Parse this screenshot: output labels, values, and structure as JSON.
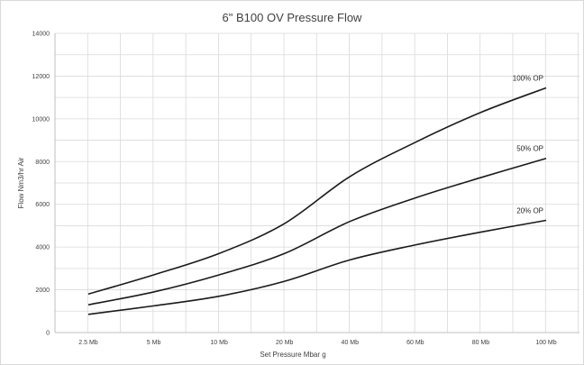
{
  "chart_data": {
    "type": "line",
    "title": "6\" B100 OV Pressure Flow",
    "xlabel": "Set Pressure Mbar g",
    "ylabel": "Flow Nm3/hr Air",
    "categories": [
      "2.5 Mb",
      "5 Mb",
      "10 Mb",
      "20 Mb",
      "40 Mb",
      "60 Mb",
      "80 Mb",
      "100 Mb"
    ],
    "ylim": [
      0,
      14000
    ],
    "yticks": [
      0,
      2000,
      4000,
      6000,
      8000,
      10000,
      12000,
      14000
    ],
    "grid": "major and minor gridlines",
    "legend": "none (series labeled at line ends)",
    "series": [
      {
        "name": "100% OP",
        "values": [
          1800,
          2700,
          3700,
          5100,
          7300,
          8900,
          10300,
          11450
        ]
      },
      {
        "name": "50% OP",
        "values": [
          1300,
          1900,
          2700,
          3700,
          5200,
          6300,
          7250,
          8150
        ]
      },
      {
        "name": "20% OP",
        "values": [
          850,
          1250,
          1700,
          2400,
          3400,
          4100,
          4700,
          5250
        ]
      }
    ]
  }
}
